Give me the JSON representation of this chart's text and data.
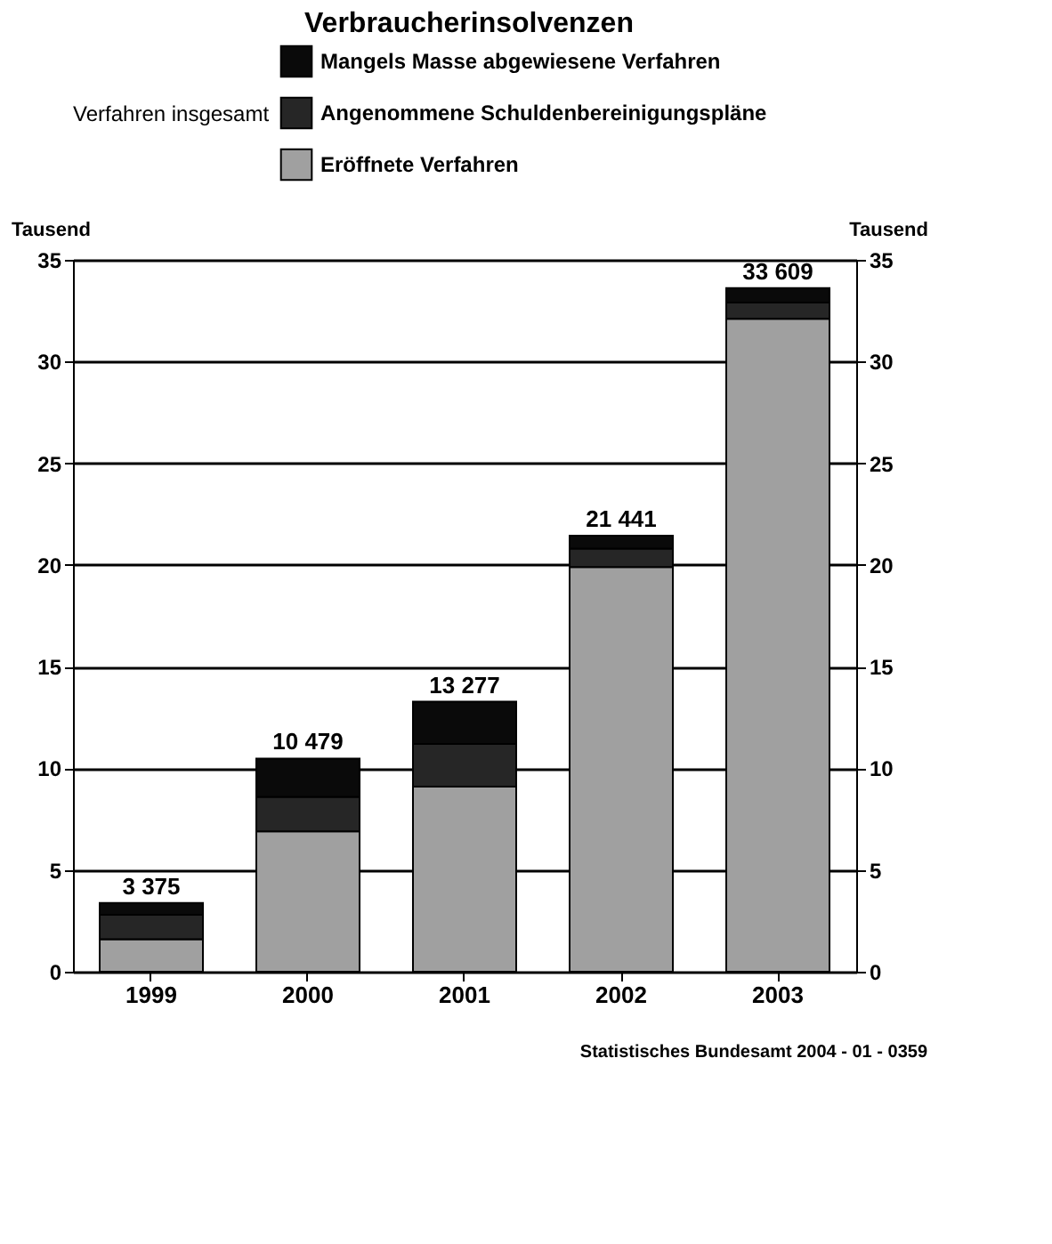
{
  "chart_data": {
    "type": "bar",
    "title": "Verbraucherinsolvenzen",
    "legend_title": "Verfahren insgesamt",
    "categories": [
      "1999",
      "2000",
      "2001",
      "2002",
      "2003"
    ],
    "stacked": true,
    "series": [
      {
        "name": "Eröffnete Verfahren",
        "color": "#a0a0a0",
        "values": [
          1.6,
          6.9,
          9.1,
          19.9,
          32.1
        ]
      },
      {
        "name": "Angenommene Schuldenbereinigungspläne",
        "color": "#262626",
        "values": [
          1.2,
          1.7,
          2.1,
          0.9,
          0.8
        ]
      },
      {
        "name": "Mangels Masse abgewiesene Verfahren",
        "color": "#0a0a0a",
        "values": [
          0.575,
          1.879,
          2.077,
          0.641,
          0.709
        ]
      }
    ],
    "totals": [
      "3 375",
      "10 479",
      "13 277",
      "21 441",
      "33 609"
    ],
    "ylabel": "Tausend",
    "y2label": "Tausend",
    "ylim": [
      0,
      35
    ],
    "yticks": [
      0,
      5,
      10,
      15,
      20,
      25,
      30,
      35
    ],
    "y2lim": [
      0,
      35
    ],
    "y2ticks": [
      0,
      5,
      10,
      15,
      20,
      25,
      30,
      35
    ],
    "grid": "y",
    "legend": "top",
    "annotations": [
      "Statistisches Bundesamt 2004 - 01 - 0359"
    ]
  }
}
